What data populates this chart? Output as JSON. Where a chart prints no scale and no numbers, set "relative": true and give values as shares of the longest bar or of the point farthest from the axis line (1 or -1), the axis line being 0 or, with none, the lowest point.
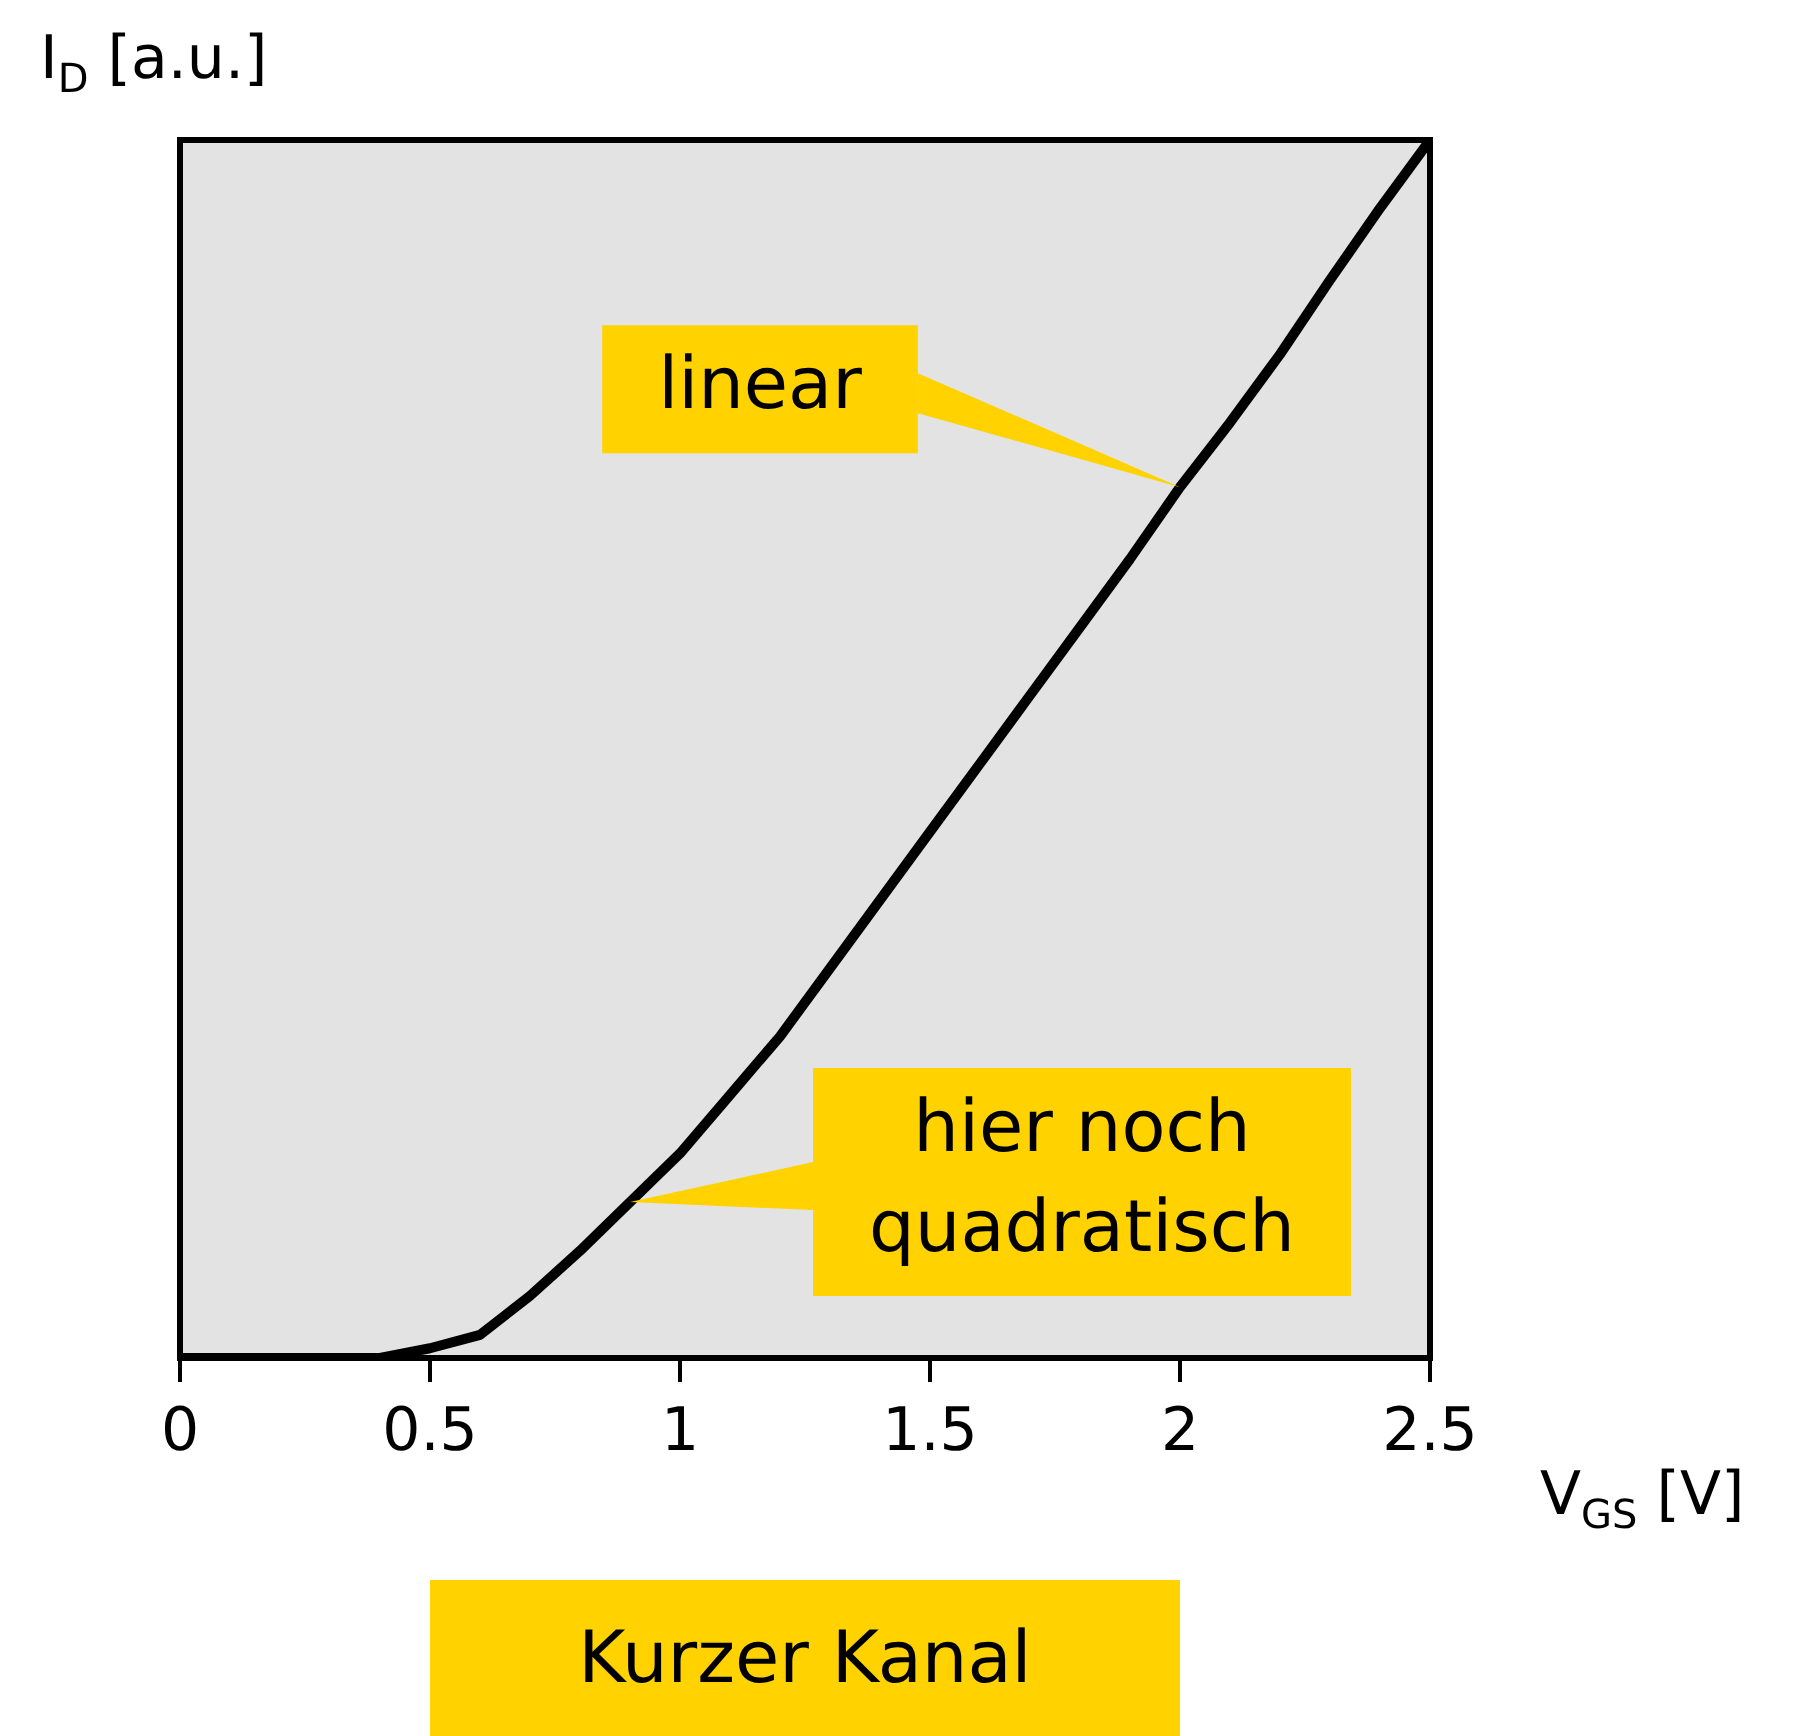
{
  "chart_data": {
    "type": "line",
    "relative": true,
    "xlabel": "V$_{GS}$ [V]",
    "ylabel": "I$_{D}$ [a.u.]",
    "x": [
      0,
      0.4,
      0.5,
      0.6,
      0.7,
      0.8,
      0.9,
      1.0,
      1.1,
      1.2,
      1.3,
      1.4,
      1.5,
      1.6,
      1.7,
      1.8,
      1.9,
      2.0,
      2.1,
      2.2,
      2.3,
      2.4,
      2.5
    ],
    "series": [
      {
        "color": "#000000",
        "values": [
          0,
          0,
          0.008,
          0.019,
          0.051,
          0.088,
          0.128,
          0.168,
          0.216,
          0.264,
          0.32,
          0.376,
          0.432,
          0.488,
          0.544,
          0.6,
          0.656,
          0.715,
          0.768,
          0.824,
          0.885,
          0.944,
          1
        ]
      }
    ],
    "xlim": [
      0,
      2.5
    ],
    "xticks": [
      0,
      0.5,
      1,
      1.5,
      2,
      2.5
    ],
    "grid": false,
    "legend": false,
    "marker": "none",
    "line_style": "solid",
    "annotations": [
      {
        "text": "linear",
        "x": 2.0,
        "y": 0.715
      },
      {
        "text": "hier noch quadratisch",
        "x": 0.9,
        "y": 0.128
      },
      "Kurzer Kanal"
    ]
  }
}
